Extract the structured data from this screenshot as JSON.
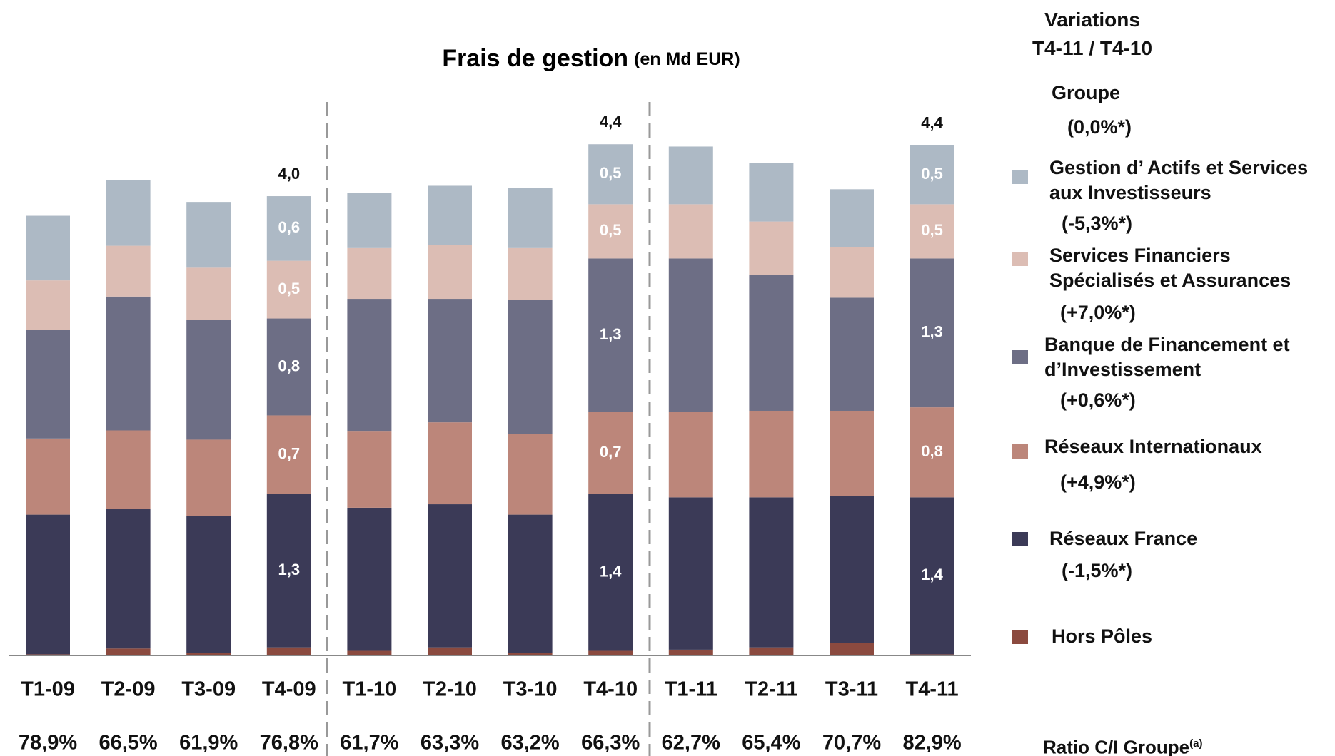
{
  "chart_data": {
    "type": "stacked_bar",
    "title": "Frais de gestion",
    "subtitle": "(en Md EUR)",
    "categories": [
      "T1-09",
      "T2-09",
      "T3-09",
      "T4-09",
      "T1-10",
      "T2-10",
      "T3-10",
      "T4-10",
      "T1-11",
      "T2-11",
      "T3-11",
      "T4-11"
    ],
    "ylim": [
      0,
      5
    ],
    "series": [
      {
        "name": "Gestion d’ Actifs et Services aux Investisseurs",
        "variation": "(-5,3%*)",
        "color": "#adb9c5",
        "values": [
          0.56,
          0.57,
          0.57,
          0.56,
          0.48,
          0.51,
          0.52,
          0.52,
          0.5,
          0.51,
          0.5,
          0.51
        ],
        "value_labels": [
          null,
          null,
          null,
          "0,6",
          null,
          null,
          null,
          "0,5",
          null,
          null,
          null,
          "0,5"
        ]
      },
      {
        "name": "Services Financiers Spécialisés et Assurances",
        "variation": "(+7,0%*)",
        "color": "#dcbdb4",
        "values": [
          0.43,
          0.44,
          0.45,
          0.5,
          0.44,
          0.47,
          0.45,
          0.47,
          0.47,
          0.46,
          0.44,
          0.47
        ],
        "value_labels": [
          null,
          null,
          null,
          "0,5",
          null,
          null,
          null,
          "0,5",
          null,
          null,
          null,
          "0,5"
        ]
      },
      {
        "name": "Banque de Financement et d’Investissement",
        "variation": "(+0,6%*)",
        "color": "#6d6e85",
        "values": [
          0.94,
          1.16,
          1.04,
          0.84,
          1.15,
          1.07,
          1.16,
          1.33,
          1.33,
          1.18,
          0.98,
          1.29
        ],
        "value_labels": [
          null,
          null,
          null,
          "0,8",
          null,
          null,
          null,
          "1,3",
          null,
          null,
          null,
          "1,3"
        ]
      },
      {
        "name": "Réseaux Internationaux",
        "variation": "(+4,9%*)",
        "color": "#bc867a",
        "values": [
          0.66,
          0.68,
          0.66,
          0.68,
          0.66,
          0.71,
          0.7,
          0.71,
          0.74,
          0.75,
          0.74,
          0.78
        ],
        "value_labels": [
          null,
          null,
          null,
          "0,7",
          null,
          null,
          null,
          "0,7",
          null,
          null,
          null,
          "0,8"
        ]
      },
      {
        "name": "Réseaux France",
        "variation": "(-1,5%*)",
        "color": "#3b3a57",
        "values": [
          1.21,
          1.21,
          1.19,
          1.33,
          1.24,
          1.24,
          1.2,
          1.36,
          1.32,
          1.3,
          1.27,
          1.36
        ],
        "value_labels": [
          null,
          null,
          null,
          "1,3",
          null,
          null,
          null,
          "1,4",
          null,
          null,
          null,
          "1,4"
        ]
      },
      {
        "name": "Hors Pôles",
        "color": "#8b4a3f",
        "values": [
          0.01,
          0.06,
          0.02,
          0.07,
          0.04,
          0.07,
          0.02,
          0.04,
          0.05,
          0.07,
          0.11,
          0.01
        ]
      }
    ],
    "totals": [
      null,
      null,
      null,
      4.0,
      null,
      null,
      null,
      4.4,
      null,
      null,
      null,
      4.4
    ],
    "total_labels": [
      null,
      null,
      null,
      "4,0",
      null,
      null,
      null,
      "4,4",
      null,
      null,
      null,
      "4,4"
    ],
    "legend_header": [
      "Variations",
      "T4-11 / T4-10"
    ],
    "group": {
      "name": "Groupe",
      "variation": "(0,0%*)"
    },
    "ratio_row": {
      "label": "Ratio C/I Groupe",
      "note": "(a)",
      "values": [
        "78,9%",
        "66,5%",
        "61,9%",
        "76,8%",
        "61,7%",
        "63,3%",
        "63,2%",
        "66,3%",
        "62,7%",
        "65,4%",
        "70,7%",
        "82,9%"
      ]
    }
  }
}
